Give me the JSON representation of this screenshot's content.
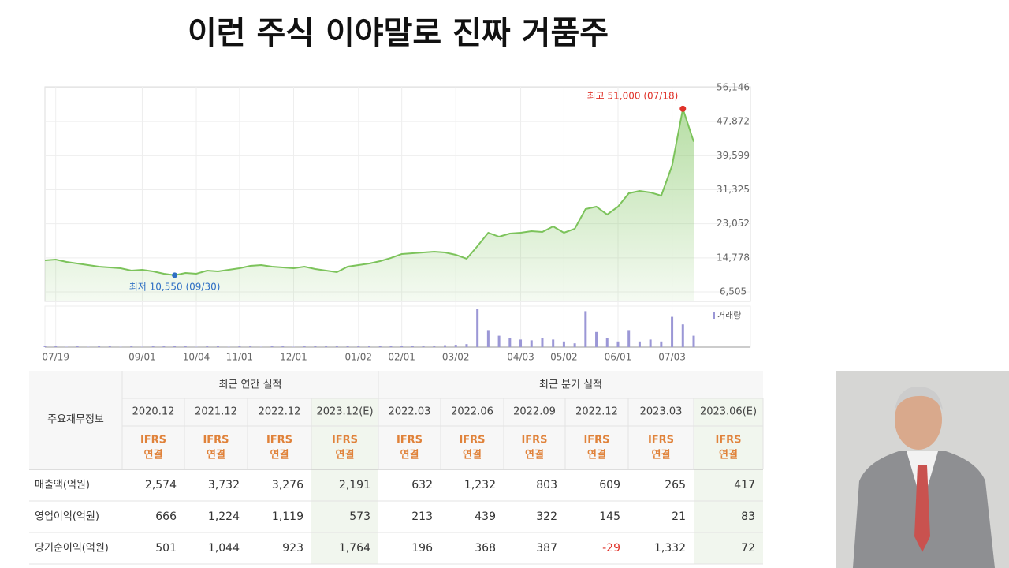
{
  "title": "이런 주식 이야말로 진짜 거품주",
  "chart_data": {
    "type": "area",
    "color": "#7cc35b",
    "grid": true,
    "categories": [
      null,
      "07/19",
      null,
      null,
      null,
      null,
      null,
      null,
      null,
      "09/01",
      null,
      null,
      null,
      null,
      "10/04",
      null,
      null,
      null,
      "11/01",
      null,
      null,
      null,
      null,
      "12/01",
      null,
      null,
      null,
      null,
      null,
      "01/02",
      null,
      null,
      null,
      "02/01",
      null,
      null,
      null,
      null,
      "03/02",
      null,
      null,
      null,
      null,
      null,
      "04/03",
      null,
      null,
      null,
      "05/02",
      null,
      null,
      null,
      null,
      "06/01",
      null,
      null,
      null,
      null,
      "07/03",
      null,
      null
    ],
    "values": [
      14170,
      14360,
      13790,
      13400,
      13020,
      12640,
      12450,
      12260,
      11680,
      11870,
      11490,
      10910,
      10550,
      11100,
      10910,
      11680,
      11490,
      11870,
      12260,
      12830,
      13020,
      12640,
      12450,
      12260,
      12640,
      12060,
      11680,
      11300,
      12640,
      13020,
      13400,
      13980,
      14750,
      15710,
      15900,
      16090,
      16280,
      16090,
      15520,
      14560,
      17620,
      20880,
      19920,
      20690,
      20880,
      21260,
      21070,
      22420,
      20880,
      21840,
      26630,
      27210,
      25290,
      27210,
      30470,
      31040,
      30660,
      29890,
      37180,
      51000,
      43000
    ],
    "ylim": [
      6505,
      56146
    ],
    "yticks": [
      {
        "value": 6505,
        "label": "6,505"
      },
      {
        "value": 14778,
        "label": "14,778"
      },
      {
        "value": 23052,
        "label": "23,052"
      },
      {
        "value": 31325,
        "label": "31,325"
      },
      {
        "value": 39599,
        "label": "39,599"
      },
      {
        "value": 47872,
        "label": "47,872"
      },
      {
        "value": 56146,
        "label": "56,146"
      }
    ],
    "high_label": "최고 51,000 (07/18)",
    "high_color": "#e0332a",
    "low_label": "최저 10,550 (09/30)",
    "low_color": "#2e6fc4",
    "volume": {
      "name": "거래량",
      "color": "#9b97d6",
      "values": [
        2,
        2,
        1,
        2,
        1,
        2,
        2,
        1,
        2,
        1,
        2,
        2,
        3,
        2,
        1,
        2,
        2,
        1,
        2,
        2,
        1,
        2,
        2,
        1,
        2,
        3,
        2,
        2,
        3,
        2,
        3,
        3,
        4,
        3,
        4,
        4,
        3,
        5,
        6,
        8,
        100,
        45,
        30,
        25,
        20,
        18,
        25,
        20,
        15,
        10,
        95,
        40,
        25,
        15,
        45,
        15,
        20,
        15,
        80,
        60,
        30
      ]
    }
  },
  "table": {
    "corner": "주요재무정보",
    "groups": [
      "최근 연간 실적",
      "최근 분기 실적"
    ],
    "periods": [
      "2020.12",
      "2021.12",
      "2022.12",
      "2023.12(E)",
      "2022.03",
      "2022.06",
      "2022.09",
      "2022.12",
      "2023.03",
      "2023.06(E)"
    ],
    "standard": [
      "IFRS",
      "연결"
    ],
    "rows": [
      [
        "매출액(억원)",
        "2,574",
        "3,732",
        "3,276",
        "2,191",
        "632",
        "1,232",
        "803",
        "609",
        "265",
        "417"
      ],
      [
        "영업이익(억원)",
        "666",
        "1,224",
        "1,119",
        "573",
        "213",
        "439",
        "322",
        "145",
        "21",
        "83"
      ],
      [
        "당기순이익(억원)",
        "501",
        "1,044",
        "923",
        "1,764",
        "196",
        "368",
        "387",
        "-29",
        "1,332",
        "72"
      ]
    ]
  }
}
